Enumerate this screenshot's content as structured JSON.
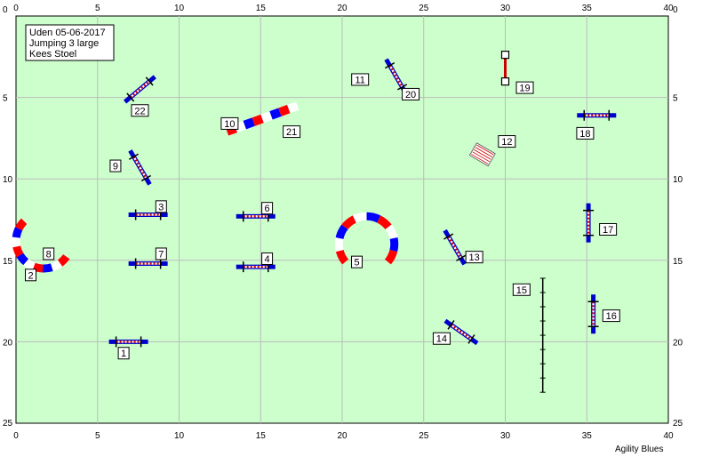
{
  "course": {
    "info_lines": [
      "Uden 05-06-2017",
      "Jumping 3 large",
      "Kees Stoel"
    ],
    "credit": "Agility Blues"
  },
  "axes": {
    "x_ticks": [
      "0",
      "5",
      "10",
      "15",
      "20",
      "25",
      "30",
      "35",
      "40"
    ],
    "y_ticks": [
      "0",
      "5",
      "10",
      "15",
      "20",
      "25"
    ]
  },
  "colors": {
    "field": "#ccffcc",
    "grid": "#bbbbbb",
    "bar_blue": "#0000cc",
    "bar_red": "#cc0000",
    "tunnel_red": "#ff0000",
    "tunnel_blue": "#0000ff"
  },
  "chart_data": {
    "type": "scatter",
    "title": "",
    "xlim": [
      0,
      40
    ],
    "ylim": [
      25,
      0
    ],
    "obstacles": [
      {
        "number": "1",
        "kind": "jump",
        "x": 6.9,
        "y": 20.0,
        "angle": 0,
        "label_x": 6.6,
        "label_y": 20.7
      },
      {
        "number": "2",
        "kind": "tunnel",
        "x": 1.7,
        "y": 13.8,
        "radius": 1.7,
        "start_deg": 35,
        "end_deg": 225,
        "label_x": 0.9,
        "label_y": 15.9
      },
      {
        "number": "3",
        "kind": "jump",
        "x": 8.1,
        "y": 12.2,
        "angle": 0,
        "label_x": 8.9,
        "label_y": 11.7
      },
      {
        "number": "4",
        "kind": "jump",
        "x": 14.7,
        "y": 15.4,
        "angle": 0,
        "label_x": 15.4,
        "label_y": 14.9
      },
      {
        "number": "5",
        "kind": "tunnel",
        "x": 21.5,
        "y": 14.0,
        "radius": 1.7,
        "start_deg": 140,
        "end_deg": 400,
        "label_x": 20.9,
        "label_y": 15.1
      },
      {
        "number": "6",
        "kind": "jump",
        "x": 14.7,
        "y": 12.3,
        "angle": 0,
        "label_x": 15.4,
        "label_y": 11.8
      },
      {
        "number": "7",
        "kind": "jump",
        "x": 8.1,
        "y": 15.2,
        "angle": 0,
        "label_x": 8.9,
        "label_y": 14.6
      },
      {
        "number": "8",
        "kind": "label",
        "x": 2.0,
        "y": 14.6,
        "label_x": 2.0,
        "label_y": 14.6
      },
      {
        "number": "9",
        "kind": "jump",
        "x": 7.6,
        "y": 9.3,
        "angle": 60,
        "label_x": 6.1,
        "label_y": 9.2
      },
      {
        "number": "10",
        "kind": "tunnel_straight",
        "x": 15.1,
        "y": 6.3,
        "length": 4.6,
        "angle": -20,
        "label_x": 13.1,
        "label_y": 6.6
      },
      {
        "number": "11",
        "kind": "label",
        "x": 21.1,
        "y": 3.9,
        "label_x": 21.1,
        "label_y": 3.9
      },
      {
        "number": "12",
        "kind": "weave",
        "x": 28.6,
        "y": 8.5,
        "angle": 30,
        "label_x": 30.1,
        "label_y": 7.7
      },
      {
        "number": "13",
        "kind": "jump",
        "x": 26.9,
        "y": 14.2,
        "angle": 60,
        "label_x": 28.1,
        "label_y": 14.8
      },
      {
        "number": "14",
        "kind": "jump",
        "x": 27.3,
        "y": 19.4,
        "angle": 35,
        "label_x": 26.1,
        "label_y": 19.8
      },
      {
        "number": "15",
        "kind": "dogwalk",
        "x": 32.3,
        "y": 19.6,
        "length": 7.0,
        "angle": 90,
        "label_x": 31.0,
        "label_y": 16.8
      },
      {
        "number": "16",
        "kind": "jump",
        "x": 35.4,
        "y": 18.3,
        "angle": 90,
        "label_x": 36.5,
        "label_y": 18.4
      },
      {
        "number": "17",
        "kind": "jump",
        "x": 35.1,
        "y": 12.7,
        "angle": 90,
        "label_x": 36.3,
        "label_y": 13.1
      },
      {
        "number": "18",
        "kind": "jump",
        "x": 35.6,
        "y": 6.1,
        "angle": 0,
        "label_x": 34.9,
        "label_y": 7.2
      },
      {
        "number": "19",
        "kind": "tire",
        "x": 30.0,
        "y": 3.2,
        "angle": 90,
        "label_x": 31.2,
        "label_y": 4.4
      },
      {
        "number": "20",
        "kind": "jump",
        "x": 23.3,
        "y": 3.7,
        "angle": 60,
        "label_x": 24.2,
        "label_y": 4.8
      },
      {
        "number": "21",
        "kind": "label",
        "x": 16.9,
        "y": 7.1,
        "label_x": 16.9,
        "label_y": 7.1
      },
      {
        "number": "22",
        "kind": "jump",
        "x": 7.6,
        "y": 4.5,
        "angle": -40,
        "label_x": 7.6,
        "label_y": 5.8
      }
    ]
  }
}
